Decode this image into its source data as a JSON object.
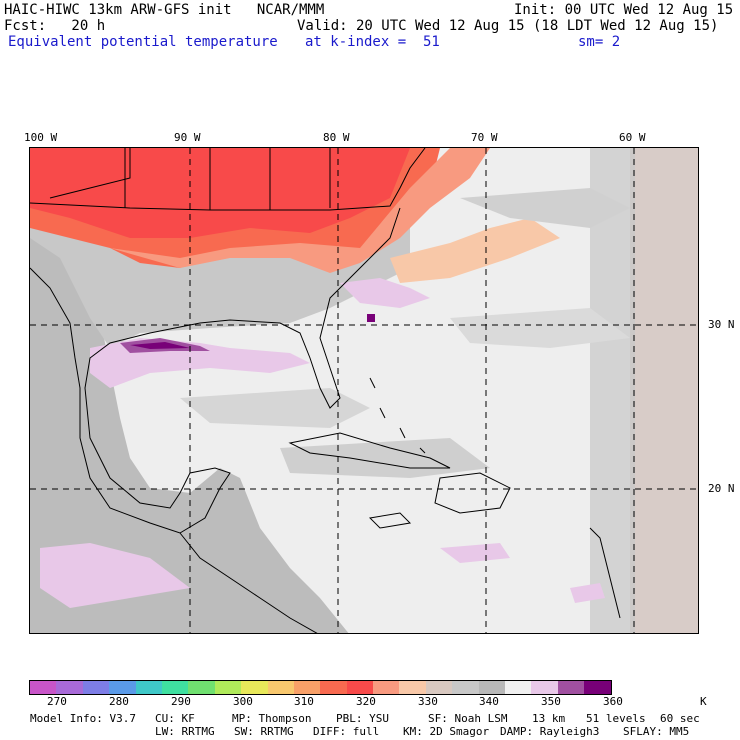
{
  "header": {
    "line1_left": "HAIC-HIWC 13km ARW-GFS init   NCAR/MMM",
    "line1_right": "Init: 00 UTC Wed 12 Aug 15",
    "line2_left": "Fcst:   20 h",
    "line2_right": "Valid: 20 UTC Wed 12 Aug 15 (18 LDT Wed 12 Aug 15)",
    "field_name": "Equivalent potential temperature",
    "level": "at k-index =  51",
    "smoothing": "sm= 2"
  },
  "map": {
    "lon_labels": [
      "100 W",
      "90 W",
      "80 W",
      "70 W",
      "60 W"
    ],
    "lat_labels": [
      "30 N",
      "20 N"
    ]
  },
  "colorbar": {
    "colors": [
      "#c855c8",
      "#a86ad8",
      "#7d7de6",
      "#5a9ae8",
      "#3fc8c8",
      "#3fe0a0",
      "#70e070",
      "#b0ea5a",
      "#e8e85a",
      "#f8c86e",
      "#f8a068",
      "#f86a50",
      "#f84a4a",
      "#f89a80",
      "#f8c8a8",
      "#d8c8c0",
      "#c8c8c8",
      "#b8b8b8",
      "#f0f0f0",
      "#e8c8e8",
      "#a050a0",
      "#780078"
    ],
    "labels": [
      "270",
      "280",
      "290",
      "300",
      "310",
      "320",
      "330",
      "340",
      "350",
      "360"
    ],
    "unit": "K"
  },
  "model_info": {
    "line1": [
      "Model Info: V3.7",
      "CU: KF",
      "MP: Thompson",
      "PBL: YSU",
      "SF: Noah LSM",
      "13 km",
      "51 levels",
      "60 sec"
    ],
    "line2": [
      "LW: RRTMG",
      "SW: RRTMG",
      "DIFF: full",
      "KM: 2D Smagor",
      "DAMP: Rayleigh3",
      "SFLAY: MM5"
    ]
  }
}
